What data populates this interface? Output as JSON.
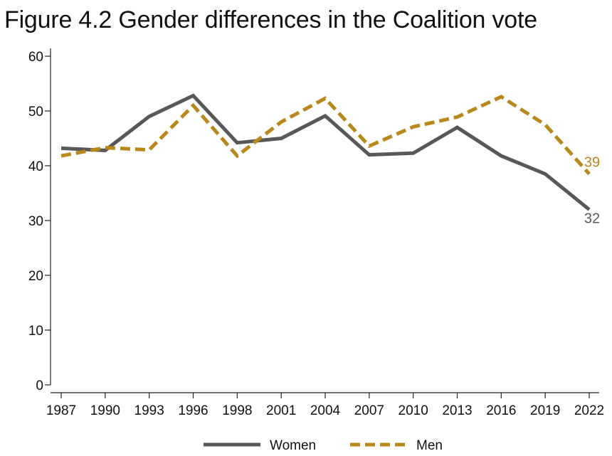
{
  "chart_data": {
    "type": "line",
    "title": "Figure 4.2 Gender differences in the Coalition vote",
    "xlabel": "",
    "ylabel": "",
    "categories": [
      "1987",
      "1990",
      "1993",
      "1996",
      "1998",
      "2001",
      "2004",
      "2007",
      "2010",
      "2013",
      "2016",
      "2019",
      "2022"
    ],
    "ylim": [
      0,
      60
    ],
    "yticks": [
      0,
      10,
      20,
      30,
      40,
      50,
      60
    ],
    "grid": false,
    "legend_position": "bottom",
    "series": [
      {
        "name": "Women",
        "color": "#58585a",
        "style": "solid",
        "values": [
          43.2,
          42.8,
          49.0,
          52.8,
          44.2,
          45.0,
          49.1,
          42.0,
          42.3,
          47.0,
          41.8,
          38.5,
          32.0
        ],
        "end_label": "32"
      },
      {
        "name": "Men",
        "color": "#b8881c",
        "style": "dashed",
        "values": [
          41.8,
          43.3,
          42.9,
          51.0,
          41.8,
          48.0,
          52.3,
          43.6,
          47.1,
          48.9,
          52.6,
          47.5,
          38.5
        ],
        "end_label": "39"
      }
    ]
  }
}
